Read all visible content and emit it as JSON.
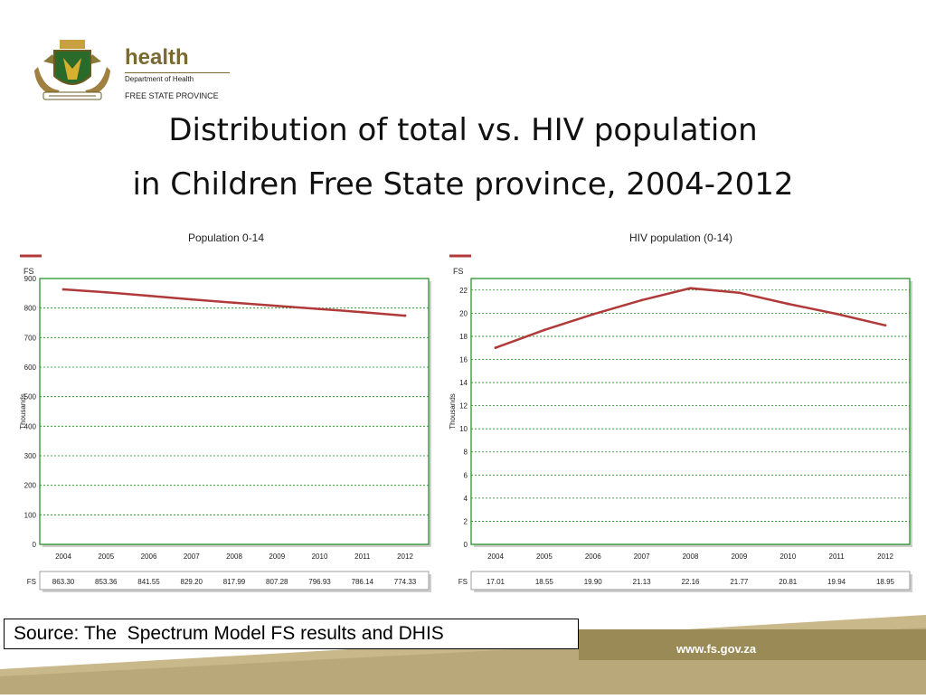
{
  "header": {
    "logo_brand": "health",
    "logo_dept": "Department of Health",
    "logo_province": "FREE STATE PROVINCE"
  },
  "slide": {
    "title_line1": "Distribution of total vs. HIV population",
    "title_line2": "in Children Free State province, 2004-2012"
  },
  "source_text": "Source: The  Spectrum Model FS results and DHIS",
  "footer_url": "www.fs.gov.za",
  "colors": {
    "series": "#b03a3a",
    "grid": "#1a8a1a",
    "footer_band": "#c8b88a",
    "footer_bar": "#9a8a55"
  },
  "chart_data": [
    {
      "type": "line",
      "title": "Population 0-14",
      "legend_name": "FS",
      "ylabel": "Thousands",
      "x": [
        "2004",
        "2005",
        "2006",
        "2007",
        "2008",
        "2009",
        "2010",
        "2011",
        "2012"
      ],
      "series": [
        {
          "name": "FS",
          "values": [
            863.3,
            853.36,
            841.55,
            829.2,
            817.99,
            807.28,
            796.93,
            786.14,
            774.33
          ]
        }
      ],
      "table_labels": [
        "863.30",
        "853.36",
        "841.55",
        "829.20",
        "817.99",
        "807.28",
        "796.93",
        "786.14",
        "774.33"
      ],
      "yticks": [
        0,
        100,
        200,
        300,
        400,
        500,
        600,
        700,
        800,
        900
      ],
      "ylim": [
        0,
        900
      ],
      "grid": true
    },
    {
      "type": "line",
      "title": "HIV population (0-14)",
      "legend_name": "FS",
      "ylabel": "Thousands",
      "x": [
        "2004",
        "2005",
        "2006",
        "2007",
        "2008",
        "2009",
        "2010",
        "2011",
        "2012"
      ],
      "series": [
        {
          "name": "FS",
          "values": [
            17.01,
            18.55,
            19.9,
            21.13,
            22.16,
            21.77,
            20.81,
            19.94,
            18.95
          ]
        }
      ],
      "table_labels": [
        "17.01",
        "18.55",
        "19.90",
        "21.13",
        "22.16",
        "21.77",
        "20.81",
        "19.94",
        "18.95"
      ],
      "yticks": [
        0,
        2,
        4,
        6,
        8,
        10,
        12,
        14,
        16,
        18,
        20,
        22
      ],
      "ylim": [
        0,
        23
      ],
      "grid": true
    }
  ]
}
